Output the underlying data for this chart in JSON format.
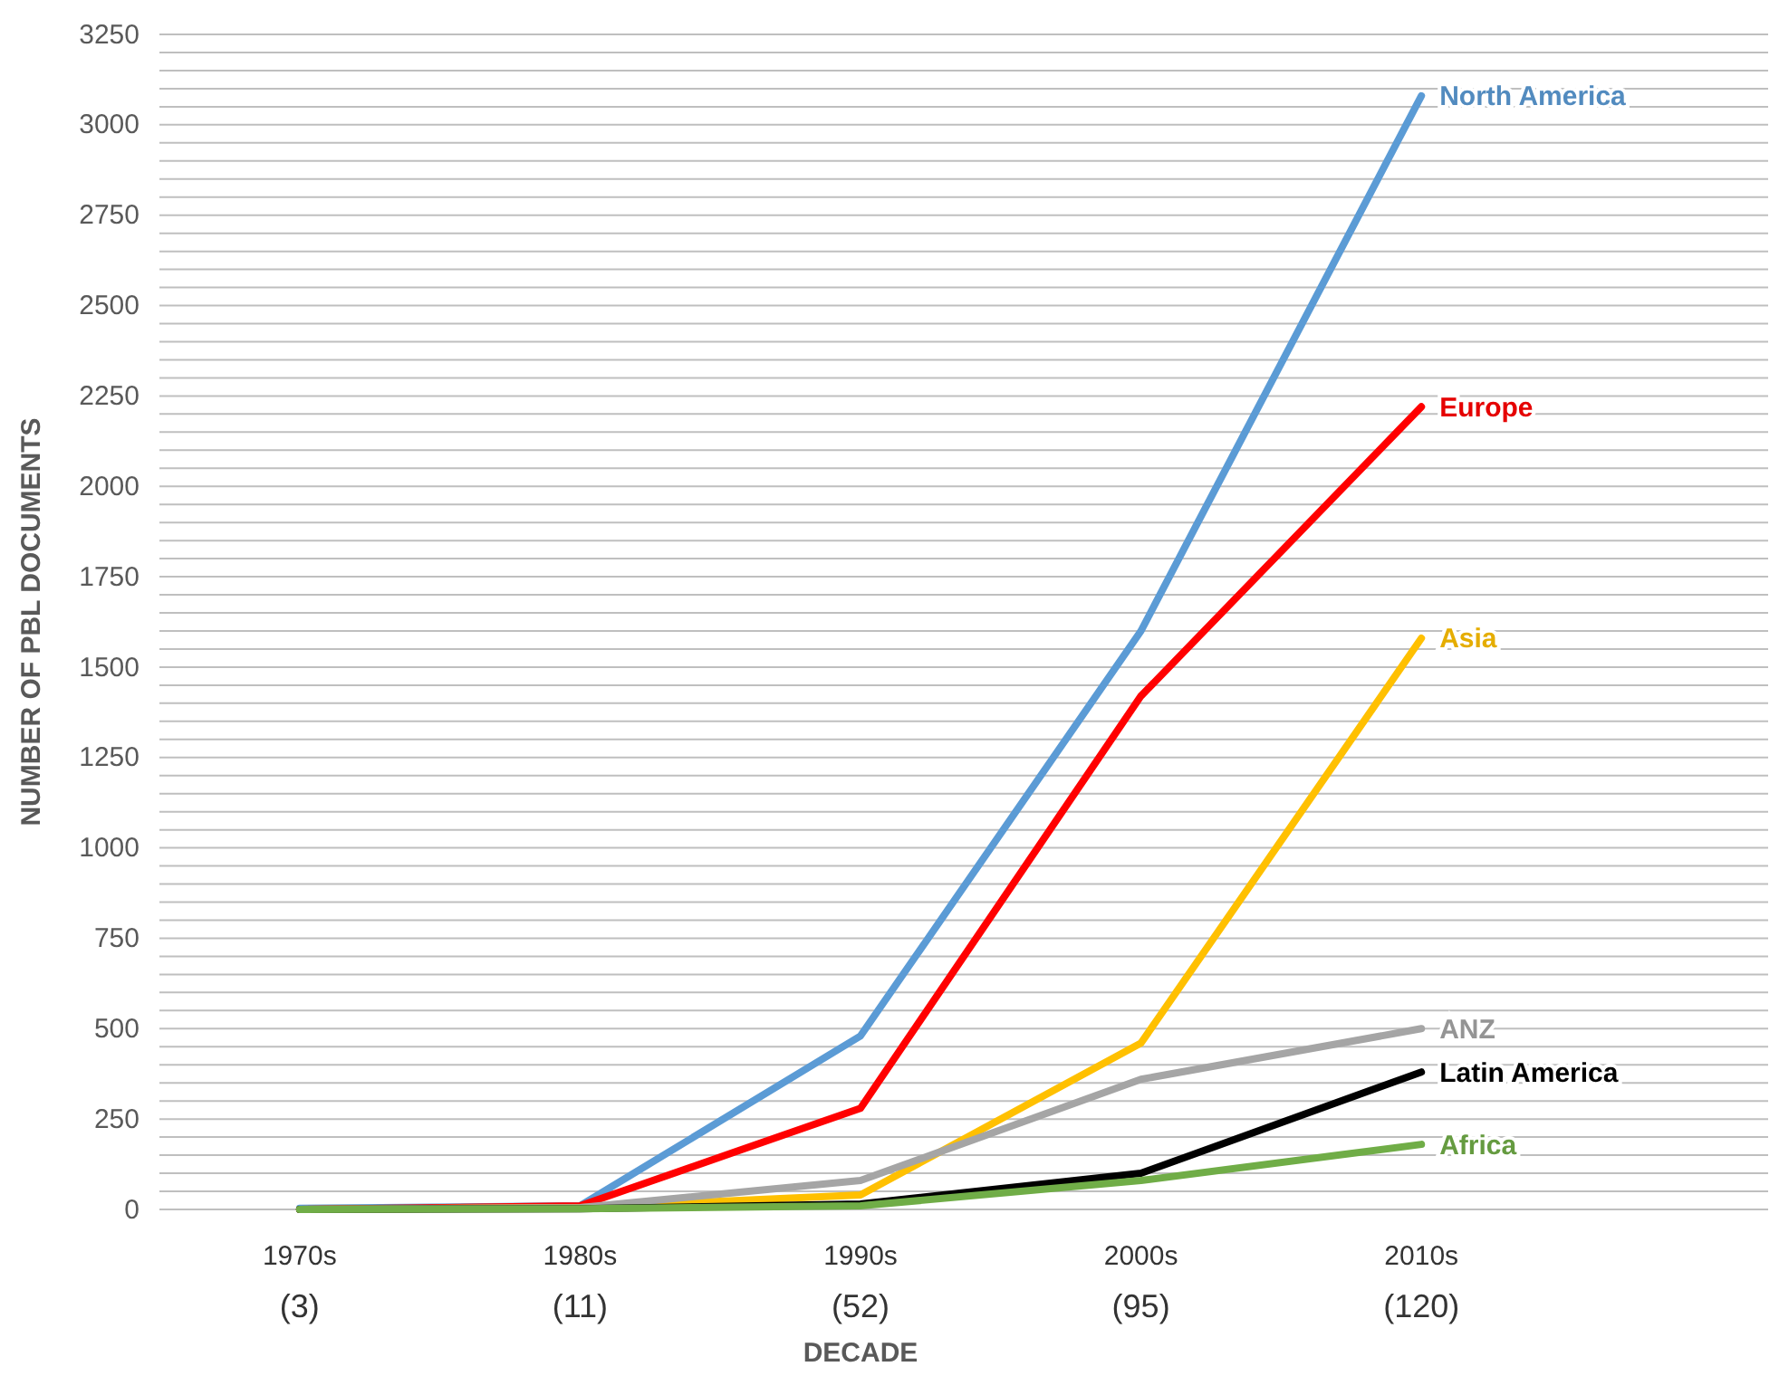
{
  "chart_data": {
    "type": "line",
    "xlabel": "DECADE",
    "ylabel": "NUMBER OF PBL DOCUMENTS",
    "categories": [
      "1970s\n(3)",
      "1980s\n(11)",
      "1990s\n(52)",
      "2000s\n(95)",
      "2010s\n(120)"
    ],
    "series": [
      {
        "name": "North America",
        "color": "#5b9bd5",
        "values": [
          3,
          10,
          480,
          1600,
          3080
        ]
      },
      {
        "name": "Europe",
        "color": "#ff0000",
        "values": [
          0,
          10,
          280,
          1420,
          2220
        ]
      },
      {
        "name": "Asia",
        "color": "#ffc000",
        "values": [
          0,
          5,
          40,
          460,
          1580
        ]
      },
      {
        "name": "ANZ",
        "color": "#a5a5a5",
        "values": [
          0,
          5,
          80,
          360,
          500
        ]
      },
      {
        "name": "Latin America",
        "color": "#000000",
        "values": [
          0,
          2,
          15,
          100,
          380
        ]
      },
      {
        "name": "Africa",
        "color": "#70ad47",
        "values": [
          0,
          2,
          10,
          80,
          180
        ]
      }
    ],
    "ylim": [
      0,
      3250
    ],
    "yticks": [
      0,
      {
        "value": 50,
        "label": null
      },
      {
        "value": 100,
        "label": null
      },
      {
        "value": 150,
        "label": null
      },
      {
        "value": 200,
        "label": null
      },
      250,
      {
        "value": 300,
        "label": null
      },
      {
        "value": 350,
        "label": null
      },
      {
        "value": 400,
        "label": null
      },
      {
        "value": 450,
        "label": null
      },
      500,
      {
        "value": 550,
        "label": null
      },
      {
        "value": 600,
        "label": null
      },
      {
        "value": 650,
        "label": null
      },
      {
        "value": 700,
        "label": null
      },
      750,
      {
        "value": 800,
        "label": null
      },
      {
        "value": 850,
        "label": null
      },
      {
        "value": 900,
        "label": null
      },
      {
        "value": 950,
        "label": null
      },
      1000,
      {
        "value": 1050,
        "label": null
      },
      {
        "value": 1100,
        "label": null
      },
      {
        "value": 1150,
        "label": null
      },
      {
        "value": 1200,
        "label": null
      },
      1250,
      {
        "value": 1300,
        "label": null
      },
      {
        "value": 1350,
        "label": null
      },
      {
        "value": 1400,
        "label": null
      },
      {
        "value": 1450,
        "label": null
      },
      1500,
      {
        "value": 1550,
        "label": null
      },
      {
        "value": 1600,
        "label": null
      },
      {
        "value": 1650,
        "label": null
      },
      {
        "value": 1700,
        "label": null
      },
      1750,
      {
        "value": 1800,
        "label": null
      },
      {
        "value": 1850,
        "label": null
      },
      {
        "value": 1900,
        "label": null
      },
      {
        "value": 1950,
        "label": null
      },
      2000,
      {
        "value": 2050,
        "label": null
      },
      {
        "value": 2100,
        "label": null
      },
      {
        "value": 2150,
        "label": null
      },
      {
        "value": 2200,
        "label": null
      },
      2250,
      {
        "value": 2300,
        "label": null
      },
      {
        "value": 2350,
        "label": null
      },
      {
        "value": 2400,
        "label": null
      },
      {
        "value": 2450,
        "label": null
      },
      2500,
      {
        "value": 2550,
        "label": null
      },
      {
        "value": 2600,
        "label": null
      },
      {
        "value": 2650,
        "label": null
      },
      {
        "value": 2700,
        "label": null
      },
      2750,
      {
        "value": 2800,
        "label": null
      },
      {
        "value": 2850,
        "label": null
      },
      {
        "value": 2900,
        "label": null
      },
      {
        "value": 2950,
        "label": null
      },
      3000,
      {
        "value": 3050,
        "label": null
      },
      {
        "value": 3100,
        "label": null
      },
      {
        "value": 3150,
        "label": null
      },
      {
        "value": 3200,
        "label": null
      },
      3250
    ],
    "grid": "y",
    "marker": "none",
    "line_style": "solid"
  }
}
